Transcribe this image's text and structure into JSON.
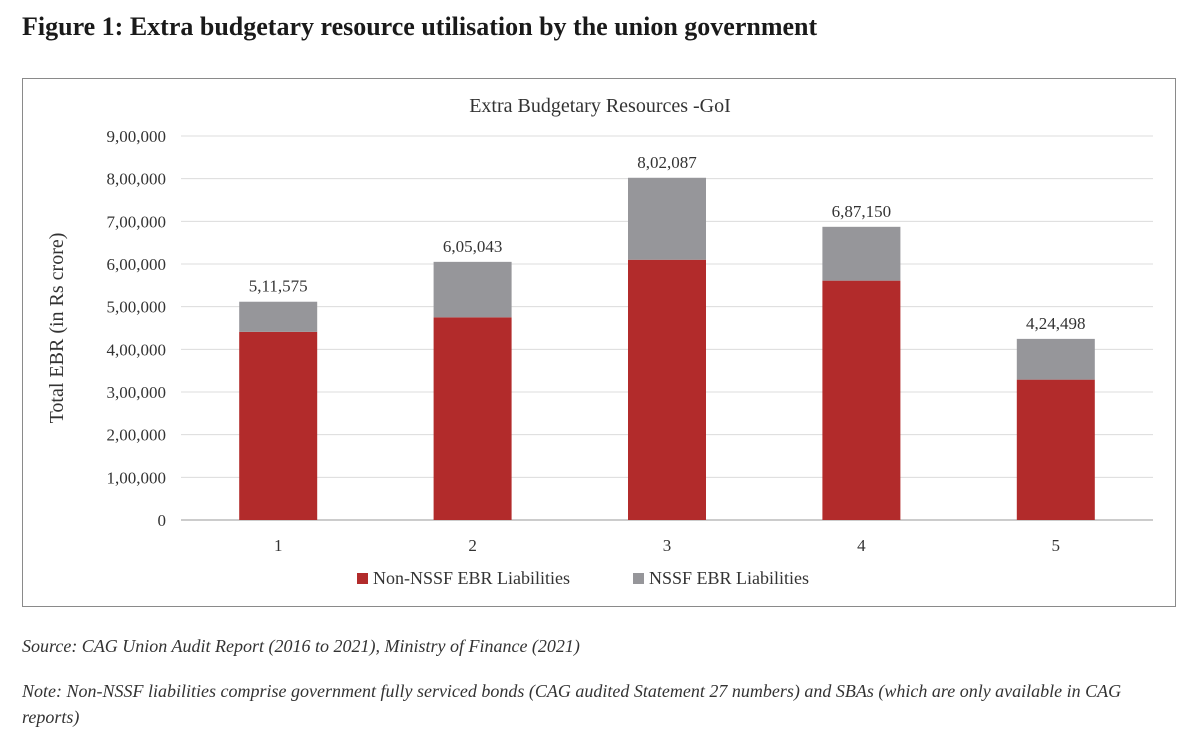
{
  "figure": {
    "title": "Figure 1: Extra budgetary resource utilisation by the union government",
    "source": "Source: CAG Union Audit Report (2016 to 2021), Ministry of Finance (2021)",
    "note": "Note: Non-NSSF liabilities comprise government fully serviced bonds (CAG audited Statement 27 numbers) and SBAs (which are only available in CAG reports)"
  },
  "chart_data": {
    "type": "bar",
    "stacked": true,
    "title": "Extra Budgetary Resources -GoI",
    "xlabel": "",
    "ylabel": "Total EBR (in Rs crore)",
    "categories": [
      "1",
      "2",
      "3",
      "4",
      "5"
    ],
    "series": [
      {
        "name": "Non-NSSF EBR Liabilities",
        "color": "#b22b2b",
        "values": [
          441000,
          475000,
          610000,
          561000,
          329000
        ]
      },
      {
        "name": "NSSF EBR Liabilities",
        "color": "#96969a",
        "values": [
          70575,
          130043,
          192087,
          126150,
          95498
        ]
      }
    ],
    "totals": [
      511575,
      605043,
      802087,
      687150,
      424498
    ],
    "total_labels": [
      "5,11,575",
      "6,05,043",
      "8,02,087",
      "6,87,150",
      "4,24,498"
    ],
    "ylim": [
      0,
      900000
    ],
    "yticks": [
      0,
      100000,
      200000,
      300000,
      400000,
      500000,
      600000,
      700000,
      800000,
      900000
    ],
    "ytick_labels": [
      "0",
      "1,00,000",
      "2,00,000",
      "3,00,000",
      "4,00,000",
      "5,00,000",
      "6,00,000",
      "7,00,000",
      "8,00,000",
      "9,00,000"
    ],
    "grid": true,
    "legend_position": "bottom-center"
  }
}
